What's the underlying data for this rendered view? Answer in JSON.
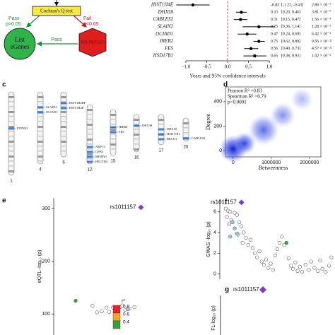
{
  "diagram": {
    "test": "Cochran's Q test",
    "pass_label": "Pass",
    "pass_p": "p>0.05",
    "fail_label": "Fail",
    "fail_p": "p<0.05",
    "list_node": [
      "List",
      "eGenes"
    ],
    "mr_node": "MR-PRESSO",
    "return_label": "Pass"
  },
  "ideogram": {
    "panel": "c",
    "chromosomes": [
      {
        "label": "1",
        "genes": [
          "PTPN22"
        ]
      },
      {
        "label": "4",
        "genes": [
          "SLAIN2",
          "OCIAD1"
        ]
      },
      {
        "label": "6",
        "genes": [
          "HIST1H2BF",
          "HIST1H4E"
        ]
      },
      {
        "label": "12",
        "genes": [
          "ARPC3",
          "GPN3",
          "MORN3",
          "HECTD4"
        ]
      },
      {
        "label": "15",
        "genes": [
          "IREB2",
          "FES"
        ]
      },
      {
        "label": "16",
        "genes": [
          "DHX38"
        ]
      },
      {
        "label": "17",
        "genes": [
          "DHX58",
          "HSD17B1",
          "BECN1"
        ]
      },
      {
        "label": "20",
        "genes": [
          "CABLES2"
        ]
      }
    ]
  },
  "panel_g": {
    "panel": "g",
    "ylabel": "FL-log₁₀ (p)",
    "highlight_label": "rs1011157"
  },
  "chart_data": [
    {
      "type": "forest",
      "categories": [
        "HIST1H4E",
        "DHX58",
        "CABLES2",
        "SLAIN2",
        "OCIAD1",
        "IREB2",
        "FES",
        "HSD17B1"
      ],
      "values": [
        -0.83,
        0.33,
        0.31,
        0.75,
        0.47,
        0.75,
        0.56,
        0.65
      ],
      "lower": [
        -1.23,
        0.2,
        0.15,
        0.36,
        0.24,
        0.62,
        0.4,
        0.38
      ],
      "upper": [
        -0.43,
        0.46,
        0.47,
        1.14,
        0.69,
        0.89,
        0.73,
        0.93
      ],
      "ci_labels": [
        "[-1.23, -0.43]",
        "[0.20, 0.46]",
        "[0.15, 0.47]",
        "[0.36, 1.14]",
        "[0.24, 0.69]",
        "[0.62, 0.89]",
        "[0.40, 0.73]",
        "[0.38, 0.93]"
      ],
      "p_labels": [
        "2.86 × 10⁻⁷",
        "3.81 × 10⁻⁷",
        "1.56 × 10⁻⁴",
        "1.28 × 10⁻³",
        "6.42 × 10⁻⁴",
        "9.56 × 10⁻²¹",
        "4.57 × 10⁻²¹",
        "1.02 × 10⁻⁵"
      ],
      "color": "#000000",
      "refline": 0,
      "refline_color": "#e8202a",
      "xlabel": "Years and 95% confidence intervals",
      "xlim": [
        -1.05,
        1.05
      ],
      "xticks": [
        {
          "value": -1,
          "label": "−1.0"
        },
        {
          "value": -0.5,
          "label": "−0.5"
        },
        {
          "value": 0,
          "label": "0.0"
        },
        {
          "value": 0.5,
          "label": "0.5"
        },
        {
          "value": 1,
          "label": "1.0"
        }
      ]
    },
    {
      "type": "density",
      "panel": "d",
      "x": [
        0,
        300000,
        800000,
        1300000,
        1800000
      ],
      "y": [
        15,
        60,
        170,
        290,
        420
      ],
      "color": "#0a1fd6",
      "annotations": [
        "Pearson R² =0.83",
        "Spearman R² =0.79",
        "p<0.0001"
      ],
      "xlabel": "Betweenness",
      "ylabel": "Degree",
      "xlim": [
        -200000,
        2300000
      ],
      "ylim": [
        -50,
        520
      ],
      "xticks": [
        0,
        1000000,
        2000000
      ],
      "yticks": [
        0,
        200,
        400
      ]
    },
    {
      "type": "scatter",
      "panel": "e",
      "ylabel": "eQTL -log₁₀ (p)",
      "xlim": [
        0,
        100
      ],
      "ylim": [
        60,
        320
      ],
      "yticks": [
        100,
        200,
        300
      ],
      "series": [
        {
          "color": "#ffffff",
          "x": [
            40,
            45,
            50,
            55,
            58,
            62,
            70,
            72,
            75,
            80,
            85
          ],
          "y": [
            115,
            103,
            105,
            112,
            104,
            112,
            113,
            116,
            108,
            110,
            113
          ]
        },
        {
          "color": "#8fd3e8",
          "x": [
            68,
            78
          ],
          "y": [
            111,
            109
          ]
        },
        {
          "color": "#3aa035",
          "x": [
            22
          ],
          "y": [
            125
          ]
        }
      ],
      "highlight": {
        "label": "rs1011157",
        "x": 92,
        "y": 302,
        "color": "#7b3fc4"
      },
      "r2_legend": {
        "title": "r²",
        "ticks": [
          0.8,
          0.6,
          0.4
        ],
        "colors": [
          "#e8202a",
          "#f5a623",
          "#3aa035"
        ]
      }
    },
    {
      "type": "scatter",
      "panel": "f",
      "ylabel": "GWAS -log₁₀ (p)",
      "xlim": [
        0,
        100
      ],
      "ylim": [
        -0.5,
        7.2
      ],
      "yticks": [
        0,
        2,
        4,
        6
      ],
      "series": [
        {
          "color": "#ffffff",
          "x": [
            4,
            6,
            8,
            5,
            9,
            7,
            12,
            14,
            16,
            18,
            15,
            20,
            22,
            19,
            24,
            26,
            28,
            30,
            32,
            34,
            36,
            38,
            40,
            42,
            44,
            46,
            48,
            50,
            52,
            54,
            56,
            60,
            62,
            64,
            66,
            68,
            70,
            72,
            75,
            78,
            80,
            83,
            86,
            88,
            90,
            93,
            96,
            98
          ],
          "y": [
            6.3,
            6.1,
            6.0,
            5.5,
            5.2,
            4.8,
            5.9,
            5.7,
            5.0,
            4.6,
            3.8,
            4.0,
            3.5,
            3.0,
            2.8,
            3.3,
            2.5,
            2.0,
            1.6,
            2.2,
            1.2,
            0.9,
            1.4,
            0.6,
            1.0,
            0.4,
            1.8,
            2.4,
            3.0,
            3.6,
            2.8,
            1.5,
            0.8,
            0.5,
            1.1,
            0.3,
            0.7,
            0.2,
            0.9,
            0.4,
            1.2,
            0.6,
            0.3,
            1.3,
            0.5,
            0.2,
            0.8,
            1.6
          ]
        },
        {
          "color": "#8fd3e8",
          "x": [
            10,
            12,
            14,
            8
          ],
          "y": [
            5.0,
            4.4,
            3.9,
            3.6
          ]
        },
        {
          "color": "#3aa035",
          "x": [
            58
          ],
          "y": [
            3.0
          ]
        }
      ],
      "highlight": {
        "label": "rs1011157",
        "x": 18,
        "y": 6.9,
        "color": "#7b3fc4"
      }
    }
  ]
}
